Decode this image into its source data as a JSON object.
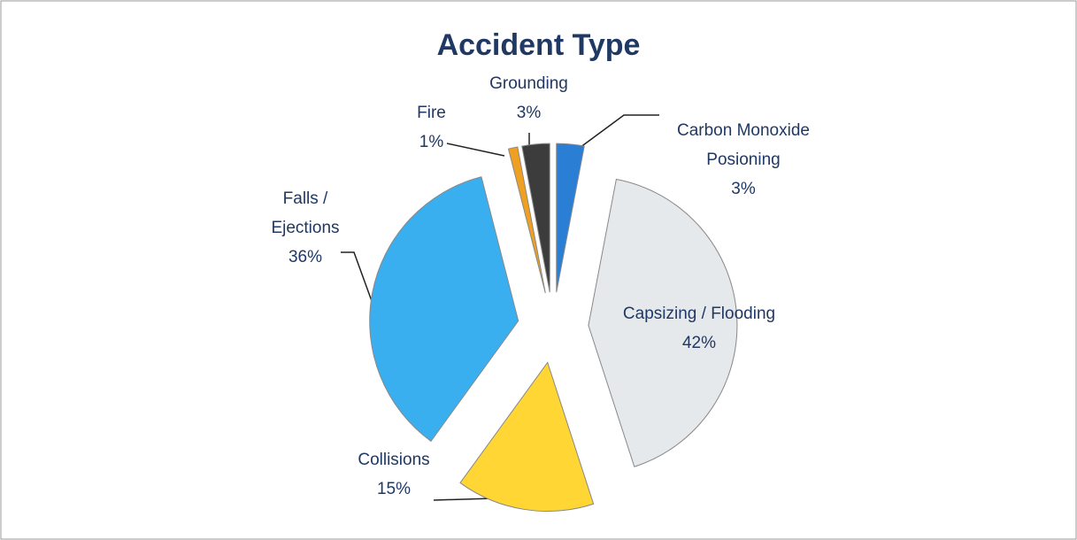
{
  "chart_data": {
    "type": "pie",
    "title": "Accident Type",
    "categories": [
      "Carbon Monoxide Posioning",
      "Capsizing / Flooding",
      "Collisions",
      "Falls / Ejections",
      "Fire",
      "Grounding"
    ],
    "values": [
      3,
      42,
      15,
      36,
      1,
      3
    ],
    "value_labels": [
      "3%",
      "42%",
      "15%",
      "36%",
      "1%",
      "3%"
    ],
    "colors": [
      "#2a7fd4",
      "#e6e9ec",
      "#ffd633",
      "#3aaff0",
      "#f0a020",
      "#3c3c3c"
    ]
  }
}
